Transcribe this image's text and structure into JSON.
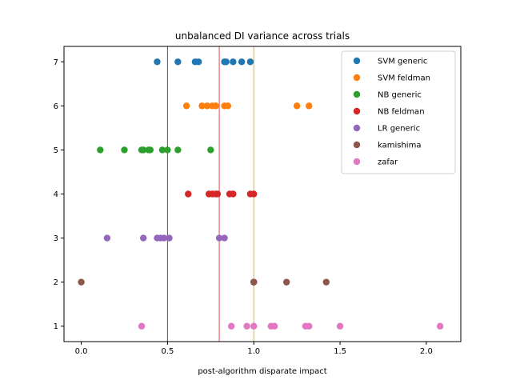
{
  "chart_data": {
    "type": "scatter",
    "title": "unbalanced DI variance across trials",
    "xlabel": "post-algorithm disparate impact",
    "ylabel": "",
    "xlim": [
      -0.1,
      2.2
    ],
    "ylim": [
      0.65,
      7.35
    ],
    "xticks": [
      0.0,
      0.5,
      1.0,
      1.5,
      2.0
    ],
    "xtick_labels": [
      "0.0",
      "0.5",
      "1.0",
      "1.5",
      "2.0"
    ],
    "yticks": [
      1,
      2,
      3,
      4,
      5,
      6,
      7
    ],
    "ytick_labels": [
      "1",
      "2",
      "3",
      "4",
      "5",
      "6",
      "7"
    ],
    "grid": false,
    "legend_position": "upper-right",
    "reference_lines": [
      {
        "x": 0.5,
        "color": "#555555"
      },
      {
        "x": 0.8,
        "color": "#e05050"
      },
      {
        "x": 1.0,
        "color": "#f0b030"
      }
    ],
    "series": [
      {
        "name": "SVM generic",
        "color": "#1f77b4",
        "y": 7,
        "x": [
          0.44,
          0.56,
          0.66,
          0.68,
          0.83,
          0.84,
          0.88,
          0.93,
          0.98
        ]
      },
      {
        "name": "SVM feldman",
        "color": "#ff7f0e",
        "y": 6,
        "x": [
          0.61,
          0.7,
          0.73,
          0.76,
          0.78,
          0.83,
          0.85,
          1.25,
          1.32
        ]
      },
      {
        "name": "NB generic",
        "color": "#2ca02c",
        "y": 5,
        "x": [
          0.11,
          0.25,
          0.35,
          0.36,
          0.39,
          0.4,
          0.47,
          0.5,
          0.56,
          0.75
        ]
      },
      {
        "name": "NB feldman",
        "color": "#d62728",
        "y": 4,
        "x": [
          0.62,
          0.74,
          0.76,
          0.78,
          0.79,
          0.86,
          0.88,
          0.98,
          1.0
        ]
      },
      {
        "name": "LR generic",
        "color": "#9467bd",
        "y": 3,
        "x": [
          0.15,
          0.36,
          0.44,
          0.46,
          0.48,
          0.51,
          0.8,
          0.83
        ]
      },
      {
        "name": "kamishima",
        "color": "#8c564b",
        "y": 2,
        "x": [
          0.0,
          1.0,
          1.0,
          1.0,
          1.19,
          1.42
        ]
      },
      {
        "name": "zafar",
        "color": "#e377c2",
        "y": 1,
        "x": [
          0.35,
          0.87,
          0.96,
          1.0,
          1.1,
          1.12,
          1.3,
          1.32,
          1.5,
          2.08
        ]
      }
    ]
  }
}
